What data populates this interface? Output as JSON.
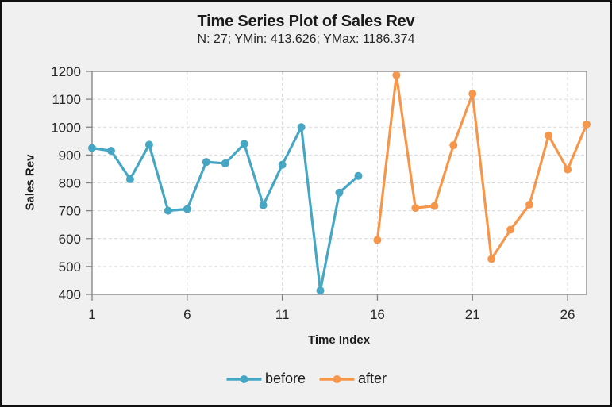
{
  "window": {
    "background": "#f0f0f0",
    "border_color": "#111111"
  },
  "colors": {
    "before_series": "#46A7C5",
    "after_series": "#F6964B",
    "gridline": "#d9d9d9",
    "axis": "#808080",
    "text": "#262626"
  },
  "chart_data": {
    "type": "line",
    "title": "Time Series Plot of Sales Rev",
    "subtitle": "N: 27; YMin: 413.626; YMax: 1186.374",
    "xlabel": "Time Index",
    "ylabel": "Sales Rev",
    "xlim": [
      1,
      27
    ],
    "ylim": [
      400,
      1200
    ],
    "x_ticks": [
      1,
      6,
      11,
      16,
      21,
      26
    ],
    "y_ticks": [
      400,
      500,
      600,
      700,
      800,
      900,
      1000,
      1100,
      1200
    ],
    "grid": true,
    "legend_position": "bottom",
    "series": [
      {
        "name": "before",
        "color": "#46A7C5",
        "x": [
          1,
          2,
          3,
          4,
          5,
          6,
          7,
          8,
          9,
          10,
          11,
          12,
          13,
          14,
          15
        ],
        "values": [
          925,
          915,
          813,
          937,
          700,
          706,
          875,
          870,
          940,
          720,
          865,
          1000,
          413.626,
          765,
          825
        ]
      },
      {
        "name": "after",
        "color": "#F6964B",
        "x": [
          16,
          17,
          18,
          19,
          20,
          21,
          22,
          23,
          24,
          25,
          26,
          27
        ],
        "values": [
          595,
          1186.374,
          710,
          717,
          935,
          1120,
          527,
          632,
          722,
          970,
          848,
          1010
        ]
      }
    ]
  }
}
